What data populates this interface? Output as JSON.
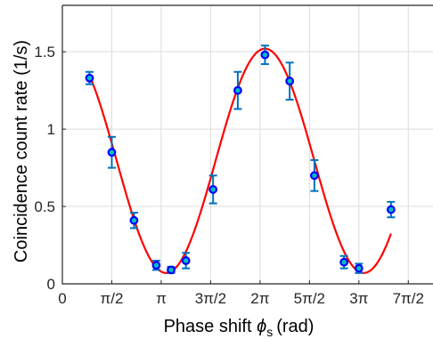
{
  "chart_data": {
    "type": "scatter",
    "xlabel": "Phase shift ϕs (rad)",
    "xlabel_parts": {
      "main": "Phase shift ",
      "symbol": "ϕ",
      "subscript": "s",
      "unit": "(rad)"
    },
    "ylabel": "Coincidence count rate (1/s)",
    "xlim": [
      0,
      7.5
    ],
    "ylim": [
      0,
      1.8
    ],
    "grid": true,
    "x_ticks": [
      {
        "value": 0,
        "label": "0"
      },
      {
        "value": 1,
        "label": "π/2"
      },
      {
        "value": 2,
        "label": "π"
      },
      {
        "value": 3,
        "label": "3π/2"
      },
      {
        "value": 4,
        "label": "2π"
      },
      {
        "value": 5,
        "label": "5π/2"
      },
      {
        "value": 6,
        "label": "3π"
      },
      {
        "value": 7,
        "label": "7π/2"
      }
    ],
    "y_ticks": [
      {
        "value": 0,
        "label": "0"
      },
      {
        "value": 0.5,
        "label": "0.5"
      },
      {
        "value": 1,
        "label": "1"
      },
      {
        "value": 1.5,
        "label": "1.5"
      }
    ],
    "x_unit_note": "x values in units of π/2 rad",
    "points": {
      "x": [
        0.55,
        1.0,
        1.45,
        1.9,
        2.2,
        2.5,
        3.05,
        3.55,
        4.1,
        4.6,
        5.1,
        5.7,
        6.0,
        6.65
      ],
      "y": [
        1.33,
        0.85,
        0.41,
        0.12,
        0.09,
        0.15,
        0.61,
        1.25,
        1.48,
        1.31,
        0.7,
        0.14,
        0.1,
        0.48
      ],
      "err": [
        0.04,
        0.1,
        0.05,
        0.03,
        0.02,
        0.05,
        0.09,
        0.12,
        0.06,
        0.12,
        0.1,
        0.04,
        0.03,
        0.05
      ],
      "marker_color": "#0000ff",
      "marker_fill": "#00bfbf",
      "errorbar_color": "#0072bd"
    },
    "fit": {
      "type": "line",
      "model": "cosine",
      "offset": 0.795,
      "amplitude": 0.725,
      "period": 4,
      "phase_shift": 4.1,
      "x_range": [
        0.55,
        6.65
      ],
      "color": "#ff0000"
    }
  },
  "colors": {
    "grid": "#dcdcdc",
    "axis": "#262626",
    "fit_line": "#ff0000",
    "marker_edge": "#0000ff",
    "errorbar": "#0072bd"
  }
}
